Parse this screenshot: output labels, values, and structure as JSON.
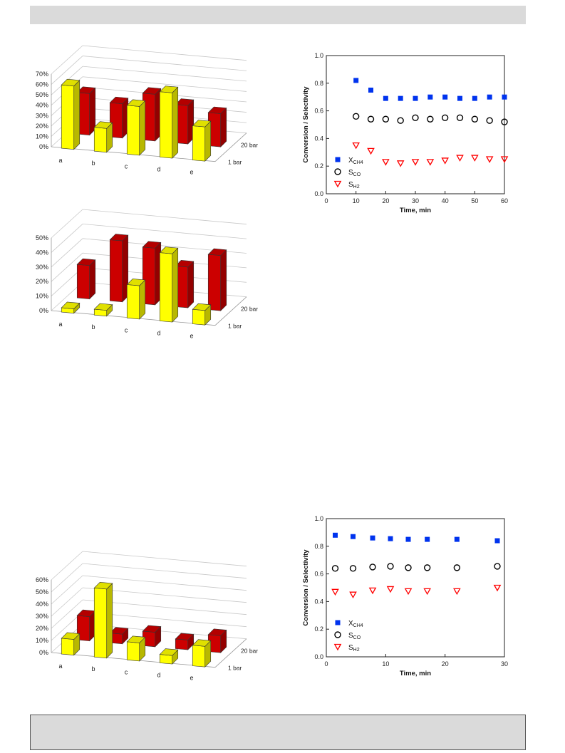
{
  "charts": [
    {
      "id": "bar3d-1",
      "type": "bar",
      "yticks": [
        "0%",
        "10%",
        "20%",
        "30%",
        "40%",
        "50%",
        "60%",
        "70%"
      ],
      "ymax": 70,
      "categories": [
        "a",
        "b",
        "c",
        "d",
        "e"
      ],
      "rows": [
        "20 bar",
        "1 bar"
      ],
      "values_1bar": [
        61,
        23,
        47,
        63,
        33
      ],
      "values_20bar": [
        40,
        33,
        45,
        37,
        32
      ],
      "colors": {
        "1 bar": "#ffff00",
        "20 bar": "#cc0000"
      }
    },
    {
      "id": "bar3d-2",
      "type": "bar",
      "yticks": [
        "0%",
        "10%",
        "20%",
        "30%",
        "40%",
        "50%"
      ],
      "ymax": 50,
      "categories": [
        "a",
        "b",
        "c",
        "d",
        "e"
      ],
      "rows": [
        "20 bar",
        "1 bar"
      ],
      "values_1bar": [
        3,
        4,
        23,
        47,
        10
      ],
      "values_20bar": [
        23,
        42,
        39,
        28,
        38
      ],
      "colors": {
        "1 bar": "#ffff00",
        "20 bar": "#cc0000"
      }
    },
    {
      "id": "bar3d-3",
      "type": "bar",
      "yticks": [
        "0%",
        "10%",
        "20%",
        "30%",
        "40%",
        "50%",
        "60%"
      ],
      "ymax": 60,
      "categories": [
        "a",
        "b",
        "c",
        "d",
        "e"
      ],
      "rows": [
        "20 bar",
        "1 bar"
      ],
      "values_1bar": [
        13,
        57,
        15,
        7,
        17
      ],
      "values_20bar": [
        20,
        8,
        12,
        8,
        14
      ],
      "colors": {
        "1 bar": "#ffff00",
        "20 bar": "#cc0000"
      }
    }
  ],
  "chart_data": [
    {
      "type": "scatter",
      "xlabel": "Time, min",
      "ylabel": "Conversion / Selectivity",
      "xlim": [
        0,
        60
      ],
      "ylim": [
        0,
        1.0
      ],
      "xticks": [
        "0",
        "10",
        "20",
        "30",
        "40",
        "50",
        "60"
      ],
      "yticks": [
        "0.0",
        "0.2",
        "0.4",
        "0.6",
        "0.8",
        "1.0"
      ],
      "legend_position": "left",
      "series": [
        {
          "name": "X",
          "sub": "CH4",
          "marker": "square",
          "color": "#0033ee",
          "x": [
            10,
            15,
            20,
            25,
            30,
            35,
            40,
            45,
            50,
            55,
            60
          ],
          "y": [
            0.82,
            0.75,
            0.69,
            0.69,
            0.69,
            0.7,
            0.7,
            0.69,
            0.69,
            0.7,
            0.7
          ]
        },
        {
          "name": "S",
          "sub": "CO",
          "marker": "circle",
          "color": "#000000",
          "x": [
            10,
            15,
            20,
            25,
            30,
            35,
            40,
            45,
            50,
            55,
            60
          ],
          "y": [
            0.56,
            0.54,
            0.54,
            0.53,
            0.55,
            0.54,
            0.55,
            0.55,
            0.54,
            0.53,
            0.52
          ]
        },
        {
          "name": "S",
          "sub": "H2",
          "marker": "triangle-down",
          "color": "#ff0000",
          "x": [
            10,
            15,
            20,
            25,
            30,
            35,
            40,
            45,
            50,
            55,
            60
          ],
          "y": [
            0.35,
            0.31,
            0.23,
            0.22,
            0.23,
            0.23,
            0.24,
            0.26,
            0.26,
            0.25,
            0.25
          ]
        }
      ]
    },
    {
      "type": "scatter",
      "xlabel": "Time, min",
      "ylabel": "Conversion / Selectivity",
      "xlim": [
        0,
        30
      ],
      "ylim": [
        0,
        1.0
      ],
      "xticks": [
        "0",
        "10",
        "20",
        "30"
      ],
      "yticks": [
        "0.0",
        "0.2",
        "0.4",
        "0.6",
        "0.8",
        "1.0"
      ],
      "legend_position": "left",
      "series": [
        {
          "name": "X",
          "sub": "CH4",
          "marker": "square",
          "color": "#0033ee",
          "x": [
            1.5,
            4.5,
            7.8,
            10.8,
            13.8,
            17,
            22,
            28.8
          ],
          "y": [
            0.88,
            0.87,
            0.86,
            0.855,
            0.85,
            0.85,
            0.85,
            0.84
          ]
        },
        {
          "name": "S",
          "sub": "CO",
          "marker": "circle",
          "color": "#000000",
          "x": [
            1.5,
            4.5,
            7.8,
            10.8,
            13.8,
            17,
            22,
            28.8
          ],
          "y": [
            0.64,
            0.64,
            0.65,
            0.655,
            0.645,
            0.645,
            0.645,
            0.655
          ]
        },
        {
          "name": "S",
          "sub": "H2",
          "marker": "triangle-down",
          "color": "#ff0000",
          "x": [
            1.5,
            4.5,
            7.8,
            10.8,
            13.8,
            17,
            22,
            28.8
          ],
          "y": [
            0.47,
            0.45,
            0.48,
            0.49,
            0.475,
            0.475,
            0.475,
            0.5
          ]
        }
      ]
    }
  ]
}
